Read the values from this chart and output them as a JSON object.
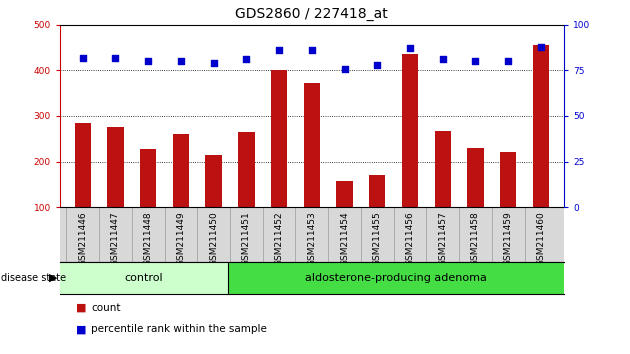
{
  "title": "GDS2860 / 227418_at",
  "categories": [
    "GSM211446",
    "GSM211447",
    "GSM211448",
    "GSM211449",
    "GSM211450",
    "GSM211451",
    "GSM211452",
    "GSM211453",
    "GSM211454",
    "GSM211455",
    "GSM211456",
    "GSM211457",
    "GSM211458",
    "GSM211459",
    "GSM211460"
  ],
  "bar_values": [
    285,
    275,
    228,
    260,
    215,
    265,
    400,
    372,
    158,
    170,
    435,
    267,
    230,
    220,
    455
  ],
  "dot_values": [
    82,
    82,
    80,
    80,
    79,
    81,
    86,
    86,
    76,
    78,
    87,
    81,
    80,
    80,
    88
  ],
  "control_count": 5,
  "control_label": "control",
  "adenoma_label": "aldosterone-producing adenoma",
  "disease_state_label": "disease state",
  "legend_count": "count",
  "legend_percentile": "percentile rank within the sample",
  "bar_color": "#bb1111",
  "dot_color": "#0000cc",
  "control_bg": "#ccffcc",
  "adenoma_bg": "#44dd44",
  "ylim_left": [
    100,
    500
  ],
  "ylim_right": [
    0,
    100
  ],
  "yticks_left": [
    100,
    200,
    300,
    400,
    500
  ],
  "yticks_right": [
    0,
    25,
    50,
    75,
    100
  ],
  "grid_values": [
    200,
    300,
    400
  ],
  "bar_width": 0.5,
  "tick_label_fontsize": 6.5,
  "title_fontsize": 10,
  "background_color": "#ffffff",
  "plot_bg": "#ffffff",
  "tick_label_color_left": "#cc0000",
  "tick_label_color_right": "#0000cc",
  "cell_bg": "#d8d8d8",
  "cell_border": "#999999"
}
